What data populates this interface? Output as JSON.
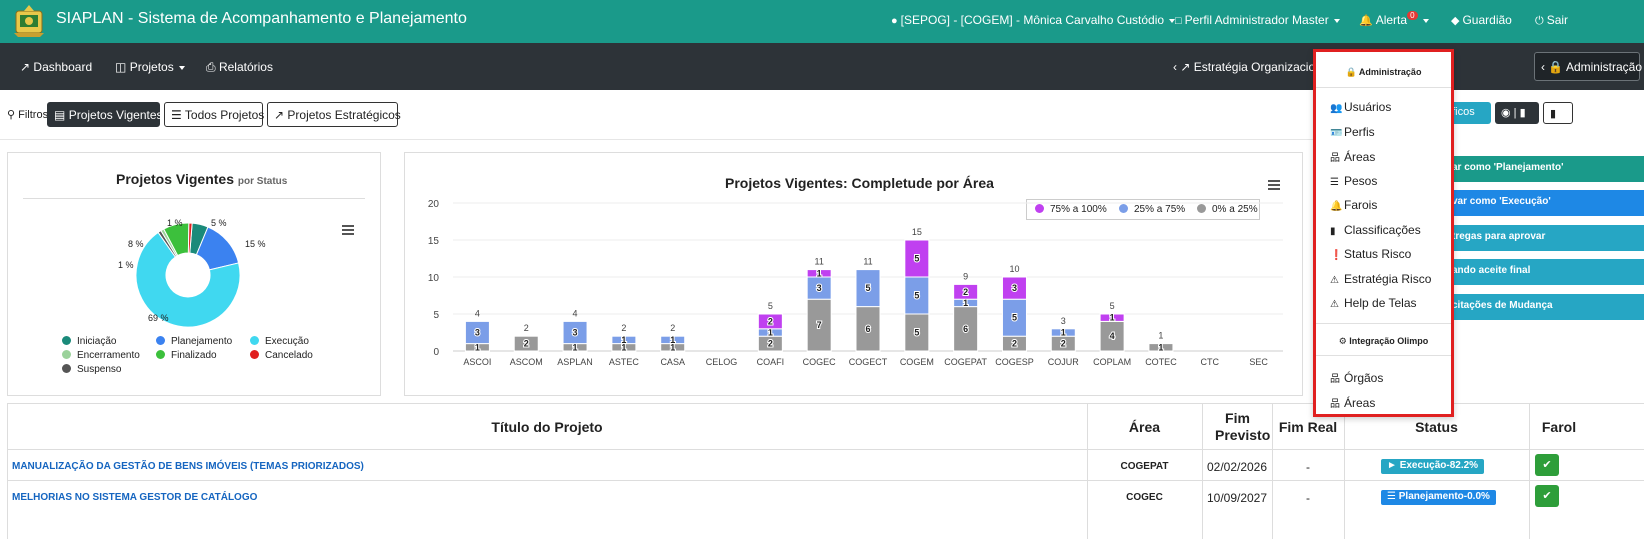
{
  "app": {
    "title": "SIAPLAN - Sistema de Acompanhamento e Planejamento"
  },
  "topbar": {
    "user": "[SEPOG] - [COGEM] - Mônica Carvalho Custódio",
    "profile": "Perfil Administrador Master",
    "alert_label": "Alerta",
    "alert_count": "0",
    "guardian": "Guardião",
    "exit": "Sair"
  },
  "navbar": {
    "dashboard": "Dashboard",
    "projetos": "Projetos",
    "relatorios": "Relatórios",
    "estrategia": "Estratégia Organizacion",
    "administracao": "Administração"
  },
  "filters": {
    "label": "Filtros:",
    "vigentes": "Projetos Vigentes",
    "todos": "Todos Projetos",
    "estrategicos": "Projetos Estratégicos"
  },
  "right_tools": {
    "graficos": "áficos"
  },
  "right_buttons": [
    {
      "label": "ar como 'Planejamento'",
      "color": "#1a9a8a"
    },
    {
      "label": "var como 'Execução'",
      "color": "#1e88e5"
    },
    {
      "label": "tregas para aprovar",
      "color": "#26a6c4"
    },
    {
      "label": "ando aceite final",
      "color": "#26a6c4"
    },
    {
      "label": "citações de Mudança",
      "color": "#26a6c4"
    }
  ],
  "pie_card": {
    "title": "Projetos Vigentes",
    "subtitle": "por Status",
    "labels": [
      "1 %",
      "5 %",
      "8 %",
      "15 %",
      "1 %",
      "69 %"
    ],
    "legend": [
      {
        "name": "Iniciação",
        "color": "#1a8a7a"
      },
      {
        "name": "Planejamento",
        "color": "#3b82f0"
      },
      {
        "name": "Execução",
        "color": "#40d8f0"
      },
      {
        "name": "Encerramento",
        "color": "#9bd29b"
      },
      {
        "name": "Finalizado",
        "color": "#3cc03c"
      },
      {
        "name": "Cancelado",
        "color": "#e02020"
      },
      {
        "name": "Suspenso",
        "color": "#555555"
      }
    ]
  },
  "bar_card": {
    "title": "Projetos Vigentes: Completude por Área",
    "legend": [
      {
        "name": "75% a 100%",
        "color": "#c040f0"
      },
      {
        "name": "25% a 75%",
        "color": "#7b9ee8"
      },
      {
        "name": "0% a 25%",
        "color": "#999999"
      }
    ]
  },
  "chart_data": [
    {
      "type": "pie",
      "title": "Projetos Vigentes",
      "subtitle": "por Status",
      "labels": [
        "Iniciação",
        "Planejamento",
        "Execução",
        "Encerramento",
        "Finalizado",
        "Cancelado",
        "Suspenso"
      ],
      "values": [
        5,
        15,
        69,
        1,
        8,
        1,
        1
      ],
      "colors": [
        "#1a8a7a",
        "#3b82f0",
        "#40d8f0",
        "#9bd29b",
        "#3cc03c",
        "#e02020",
        "#555555"
      ],
      "legend_position": "bottom"
    },
    {
      "type": "bar",
      "stacked": true,
      "title": "Projetos Vigentes: Completude por Área",
      "categories": [
        "ASCOI",
        "ASCOM",
        "ASPLAN",
        "ASTEC",
        "CASA",
        "CELOG",
        "COAFI",
        "COGEC",
        "COGECT",
        "COGEM",
        "COGEPAT",
        "COGESP",
        "COJUR",
        "COPLAM",
        "COTEC",
        "CTC",
        "SEC"
      ],
      "series": [
        {
          "name": "0% a 25%",
          "color": "#999999",
          "values": [
            1,
            2,
            1,
            1,
            1,
            0,
            2,
            7,
            6,
            5,
            6,
            2,
            2,
            4,
            1,
            0,
            0
          ]
        },
        {
          "name": "25% a 75%",
          "color": "#7b9ee8",
          "values": [
            3,
            0,
            3,
            1,
            1,
            0,
            1,
            3,
            5,
            5,
            1,
            5,
            1,
            0,
            0,
            0,
            0
          ]
        },
        {
          "name": "75% a 100%",
          "color": "#c040f0",
          "values": [
            0,
            0,
            0,
            0,
            0,
            0,
            2,
            1,
            0,
            5,
            2,
            3,
            0,
            1,
            0,
            0,
            0
          ]
        }
      ],
      "totals": [
        4,
        2,
        4,
        2,
        2,
        null,
        5,
        11,
        11,
        15,
        9,
        10,
        3,
        5,
        1,
        null,
        null
      ],
      "ylim": [
        0,
        20
      ],
      "yticks": [
        0,
        5,
        10,
        15,
        20
      ],
      "legend_position": "top-right",
      "grid": true
    }
  ],
  "admin_menu": {
    "header1": "Administração",
    "items1": [
      {
        "label": "Usuários",
        "icon": "users-icon",
        "glyph": "👥"
      },
      {
        "label": "Perfis",
        "icon": "id-card-icon",
        "glyph": "🪪"
      },
      {
        "label": "Áreas",
        "icon": "sitemap-icon",
        "glyph": "品"
      },
      {
        "label": "Pesos",
        "icon": "list-icon",
        "glyph": "☰"
      },
      {
        "label": "Farois",
        "icon": "bell-icon",
        "glyph": "🔔"
      },
      {
        "label": "Classificações",
        "icon": "bar-chart-icon",
        "glyph": "▮"
      },
      {
        "label": "Status Risco",
        "icon": "exclamation-circle-icon",
        "glyph": "❗"
      },
      {
        "label": "Estratégia Risco",
        "icon": "warning-icon",
        "glyph": "⚠"
      },
      {
        "label": "Help de Telas",
        "icon": "warning-icon",
        "glyph": "⚠"
      }
    ],
    "header2": "Integração Olimpo",
    "items2": [
      {
        "label": "Órgãos",
        "icon": "sitemap-icon",
        "glyph": "品"
      },
      {
        "label": "Áreas",
        "icon": "sitemap-icon",
        "glyph": "品"
      }
    ]
  },
  "table": {
    "headers": {
      "titulo": "Título do Projeto",
      "area": "Área",
      "fim_previsto": "Fim Previsto",
      "fim_real": "Fim Real",
      "status": "Status",
      "farol": "Farol"
    },
    "rows": [
      {
        "titulo": "MANUALIZAÇÃO DA GESTÃO DE BENS IMÓVEIS (TEMAS PRIORIZADOS)",
        "area": "COGEPAT",
        "fim_previsto": "02/02/2026",
        "fim_real": "-",
        "status": "Execução-82.2%",
        "status_color": "#26a6c4"
      },
      {
        "titulo": "MELHORIAS NO SISTEMA GESTOR DE CATÁLOGO",
        "area": "COGEC",
        "fim_previsto": "10/09/2027",
        "fim_real": "-",
        "status": "Planejamento-0.0%",
        "status_color": "#1e88e5"
      }
    ]
  }
}
